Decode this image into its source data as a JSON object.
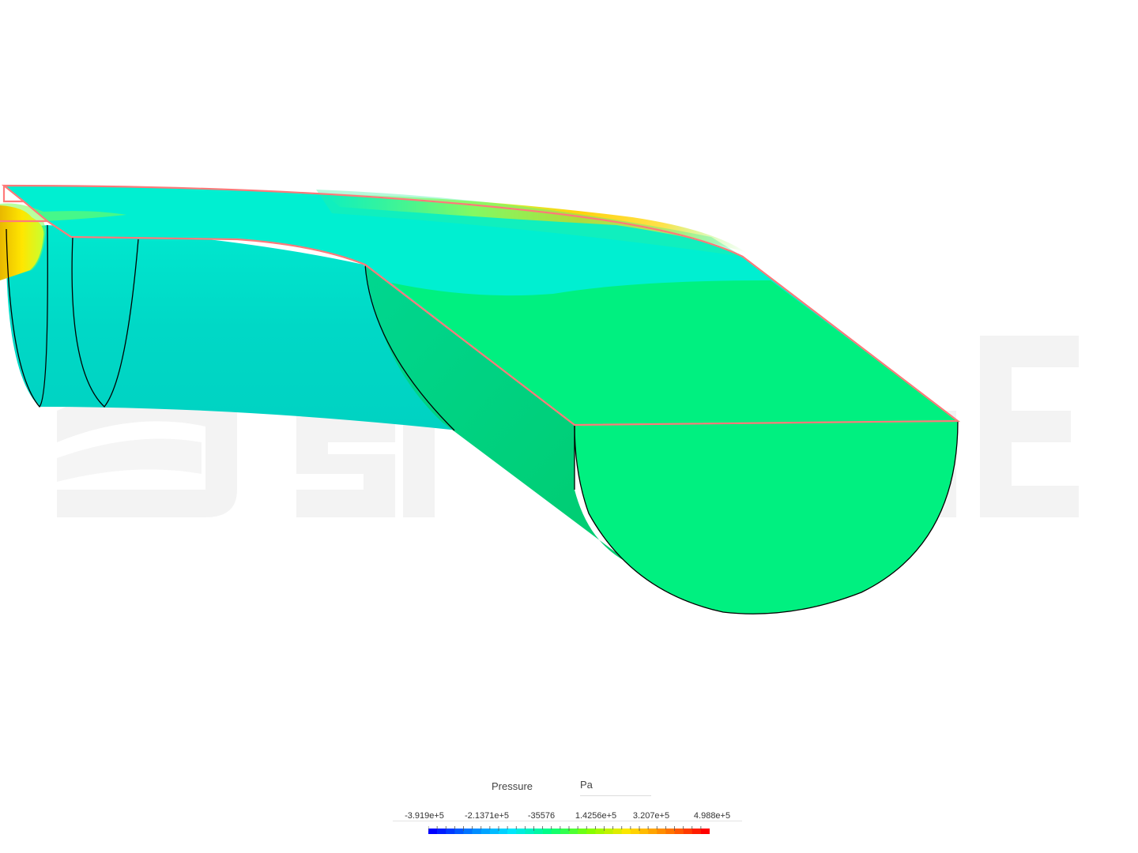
{
  "watermark": "SIMSCALE",
  "legend": {
    "title": "Pressure",
    "unit": "Pa",
    "ticks": [
      "-3.919e+5",
      "-2.1371e+5",
      "-35576",
      "1.4256e+5",
      "3.207e+5",
      "4.988e+5"
    ],
    "range": [
      -391900,
      498800
    ],
    "colormap": [
      "#0000ff",
      "#0080ff",
      "#00e5ff",
      "#00ff80",
      "#7fff00",
      "#ffe600",
      "#ff8000",
      "#ff0000"
    ]
  },
  "colors": {
    "surface_cyan": "#00efd1",
    "surface_cyan_dark": "#00d6c4",
    "surface_green": "#00f080",
    "surface_green_dark": "#00d070",
    "edge_highlight": "#ff7a7a"
  }
}
